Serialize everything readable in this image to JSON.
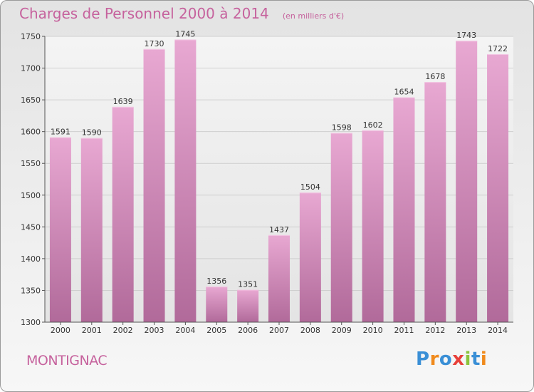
{
  "chart_data": {
    "type": "bar",
    "title": "Charges de Personnel 2000 à 2014",
    "subtitle": "(en milliers d'€)",
    "categories": [
      "2000",
      "2001",
      "2002",
      "2003",
      "2004",
      "2005",
      "2006",
      "2007",
      "2008",
      "2009",
      "2010",
      "2011",
      "2012",
      "2013",
      "2014"
    ],
    "values": [
      1591,
      1590,
      1639,
      1730,
      1745,
      1356,
      1351,
      1437,
      1504,
      1598,
      1602,
      1654,
      1678,
      1743,
      1722
    ],
    "ylim": [
      1300,
      1750
    ],
    "yticks": [
      1300,
      1350,
      1400,
      1450,
      1500,
      1550,
      1600,
      1650,
      1700,
      1750
    ],
    "grid": true,
    "bar_color_top": "#e8a8d2",
    "bar_color_bottom": "#b16a9a"
  },
  "footer": {
    "commune": "MONTIGNAC",
    "logo_text": "Proxiti"
  },
  "colors": {
    "accent": "#c6629d"
  }
}
